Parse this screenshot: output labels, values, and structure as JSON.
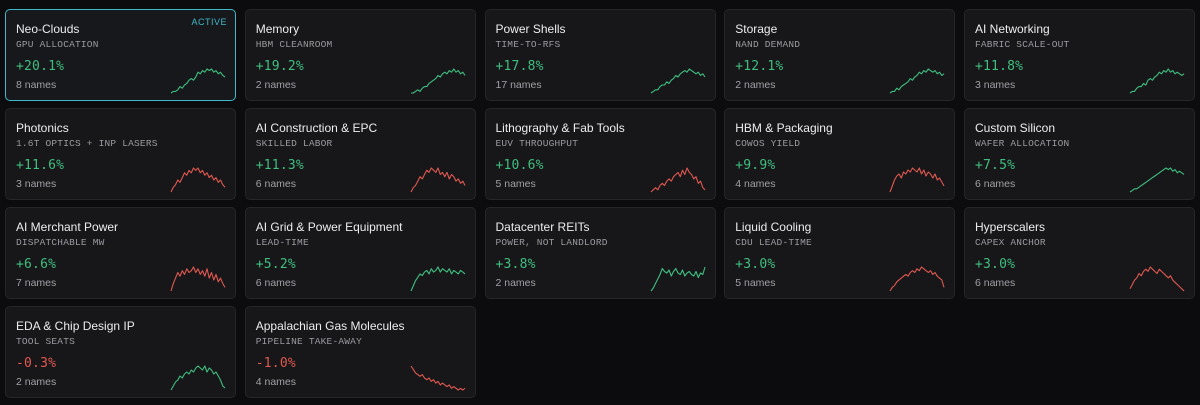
{
  "colors": {
    "up": "#3fbf7f",
    "down": "#e0584f",
    "accent": "#3fb8c9"
  },
  "cards": [
    {
      "name": "Neo-Clouds",
      "sub": "GPU ALLOCATION",
      "change": "+20.1%",
      "count": "8 names",
      "badge": "ACTIVE",
      "trend": "up",
      "spark": [
        4,
        5,
        5,
        6,
        8,
        7,
        9,
        10,
        12,
        13,
        12,
        14,
        17,
        16,
        18,
        17,
        19,
        18,
        19,
        17,
        18,
        16,
        17,
        15,
        14
      ]
    },
    {
      "name": "Memory",
      "sub": "HBM CLEANROOM",
      "change": "+19.2%",
      "count": "2 names",
      "trend": "up",
      "spark": [
        4,
        4,
        5,
        6,
        5,
        7,
        8,
        8,
        10,
        11,
        12,
        13,
        15,
        14,
        16,
        17,
        16,
        18,
        17,
        19,
        17,
        18,
        16,
        17,
        15
      ]
    },
    {
      "name": "Power Shells",
      "sub": "TIME-TO-RFS",
      "change": "+17.8%",
      "count": "17 names",
      "trend": "up",
      "spark": [
        4,
        5,
        6,
        6,
        8,
        9,
        9,
        11,
        10,
        12,
        13,
        15,
        14,
        16,
        17,
        18,
        17,
        19,
        18,
        17,
        16,
        17,
        15,
        16,
        14
      ]
    },
    {
      "name": "Storage",
      "sub": "NAND DEMAND",
      "change": "+12.1%",
      "count": "2 names",
      "trend": "up",
      "spark": [
        3,
        4,
        4,
        6,
        5,
        7,
        8,
        9,
        10,
        12,
        11,
        13,
        14,
        16,
        15,
        17,
        16,
        18,
        17,
        16,
        17,
        15,
        16,
        14,
        15
      ]
    },
    {
      "name": "AI Networking",
      "sub": "FABRIC SCALE-OUT",
      "change": "+11.8%",
      "count": "3 names",
      "trend": "up",
      "spark": [
        4,
        5,
        5,
        7,
        8,
        8,
        10,
        9,
        12,
        13,
        12,
        14,
        15,
        17,
        16,
        18,
        17,
        19,
        17,
        18,
        16,
        17,
        16,
        15,
        16
      ]
    },
    {
      "name": "Photonics",
      "sub": "1.6T OPTICS + INP LASERS",
      "change": "+11.6%",
      "count": "3 names",
      "trend": "down",
      "spark": [
        8,
        10,
        11,
        13,
        12,
        14,
        16,
        15,
        17,
        16,
        18,
        17,
        18,
        16,
        17,
        15,
        16,
        14,
        15,
        13,
        14,
        12,
        13,
        11,
        10
      ]
    },
    {
      "name": "AI Construction & EPC",
      "sub": "SKILLED LABOR",
      "change": "+11.3%",
      "count": "6 names",
      "trend": "down",
      "spark": [
        7,
        9,
        10,
        12,
        14,
        13,
        15,
        17,
        16,
        18,
        17,
        16,
        18,
        15,
        16,
        14,
        16,
        13,
        15,
        14,
        12,
        13,
        11,
        12,
        10
      ]
    },
    {
      "name": "Lithography & Fab Tools",
      "sub": "EUV THROUGHPUT",
      "change": "+10.6%",
      "count": "5 names",
      "trend": "down",
      "spark": [
        8,
        9,
        10,
        9,
        11,
        12,
        11,
        13,
        14,
        13,
        15,
        16,
        17,
        15,
        18,
        16,
        19,
        17,
        16,
        14,
        15,
        12,
        13,
        10,
        9
      ]
    },
    {
      "name": "HBM & Packaging",
      "sub": "COWOS YIELD",
      "change": "+9.9%",
      "count": "4 names",
      "trend": "down",
      "spark": [
        6,
        9,
        12,
        14,
        15,
        13,
        16,
        15,
        17,
        16,
        18,
        17,
        16,
        18,
        15,
        17,
        14,
        16,
        15,
        13,
        15,
        12,
        13,
        11,
        9
      ]
    },
    {
      "name": "Custom Silicon",
      "sub": "WAFER ALLOCATION",
      "change": "+7.5%",
      "count": "6 names",
      "trend": "up",
      "spark": [
        3,
        4,
        5,
        5,
        6,
        7,
        8,
        9,
        10,
        11,
        12,
        13,
        14,
        15,
        16,
        17,
        18,
        17,
        18,
        16,
        17,
        15,
        16,
        15,
        14
      ]
    },
    {
      "name": "AI Merchant Power",
      "sub": "DISPATCHABLE MW",
      "change": "+6.6%",
      "count": "7 names",
      "trend": "down",
      "spark": [
        6,
        10,
        13,
        16,
        14,
        17,
        15,
        18,
        16,
        17,
        19,
        16,
        18,
        15,
        17,
        14,
        18,
        13,
        16,
        12,
        15,
        11,
        13,
        10,
        8
      ]
    },
    {
      "name": "AI Grid & Power Equipment",
      "sub": "LEAD-TIME",
      "change": "+5.2%",
      "count": "6 names",
      "trend": "up",
      "spark": [
        4,
        7,
        10,
        12,
        14,
        13,
        15,
        16,
        14,
        17,
        15,
        16,
        18,
        15,
        17,
        16,
        15,
        17,
        14,
        16,
        15,
        14,
        16,
        15,
        14
      ]
    },
    {
      "name": "Datacenter REITs",
      "sub": "POWER, NOT LANDLORD",
      "change": "+3.8%",
      "count": "2 names",
      "trend": "up",
      "spark": [
        3,
        5,
        8,
        11,
        14,
        18,
        16,
        15,
        17,
        13,
        16,
        18,
        15,
        14,
        17,
        13,
        15,
        16,
        14,
        13,
        16,
        12,
        15,
        14,
        19
      ]
    },
    {
      "name": "Liquid Cooling",
      "sub": "CDU LEAD-TIME",
      "change": "+3.0%",
      "count": "5 names",
      "trend": "down",
      "spark": [
        5,
        7,
        8,
        10,
        11,
        12,
        13,
        14,
        13,
        15,
        16,
        15,
        17,
        16,
        18,
        17,
        16,
        15,
        16,
        14,
        15,
        13,
        12,
        11,
        7
      ]
    },
    {
      "name": "Hyperscalers",
      "sub": "CAPEX ANCHOR",
      "change": "+3.0%",
      "count": "6 names",
      "trend": "down",
      "spark": [
        8,
        10,
        12,
        13,
        15,
        14,
        16,
        17,
        16,
        18,
        17,
        16,
        15,
        17,
        16,
        15,
        14,
        13,
        14,
        12,
        11,
        10,
        9,
        8,
        7
      ]
    },
    {
      "name": "EDA & Chip Design IP",
      "sub": "TOOL SEATS",
      "change": "-0.3%",
      "count": "2 names",
      "trend": "up",
      "spark": [
        5,
        7,
        9,
        10,
        12,
        11,
        13,
        14,
        13,
        15,
        14,
        16,
        17,
        16,
        15,
        17,
        14,
        16,
        15,
        13,
        14,
        12,
        10,
        7,
        6
      ]
    },
    {
      "name": "Appalachian Gas Molecules",
      "sub": "PIPELINE TAKE-AWAY",
      "change": "-1.0%",
      "count": "4 names",
      "trend": "down",
      "spark": [
        18,
        16,
        14,
        13,
        12,
        13,
        11,
        10,
        11,
        9,
        10,
        8,
        9,
        7,
        8,
        7,
        6,
        7,
        5,
        6,
        5,
        4,
        5,
        4,
        5
      ]
    }
  ]
}
